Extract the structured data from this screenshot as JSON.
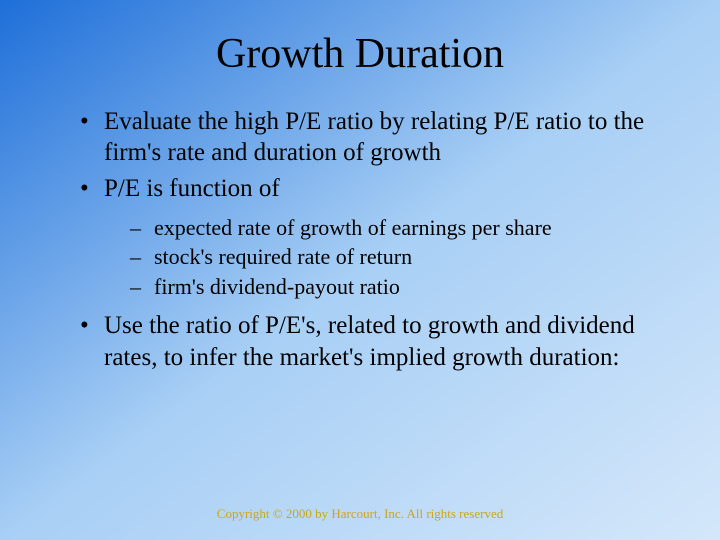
{
  "slide": {
    "title": "Growth Duration",
    "bullets": [
      {
        "level": 1,
        "text": "Evaluate the high P/E ratio by relating P/E ratio to the firm's rate and duration of growth"
      },
      {
        "level": 1,
        "text": "P/E is function of"
      },
      {
        "level": 2,
        "text": "expected rate of growth of earnings per share"
      },
      {
        "level": 2,
        "text": "stock's required rate of return"
      },
      {
        "level": 2,
        "text": "firm's dividend-payout ratio"
      },
      {
        "level": 1,
        "text": "Use the ratio of P/E's, related to growth and dividend rates, to infer the market's implied growth duration:"
      }
    ],
    "footer": "Copyright © 2000 by Harcourt, Inc.  All rights reserved"
  },
  "style": {
    "background_gradient_start": "#1e6fd9",
    "background_gradient_mid": "#a8cff5",
    "background_gradient_end": "#d4e7fa",
    "title_fontsize": 42,
    "body_fontsize_l1": 25,
    "body_fontsize_l2": 22,
    "footer_fontsize": 13,
    "text_color": "#000000",
    "footer_color": "#c8a818",
    "font_family": "Times New Roman",
    "bullet_l1_marker": "•",
    "bullet_l2_marker": "–"
  }
}
